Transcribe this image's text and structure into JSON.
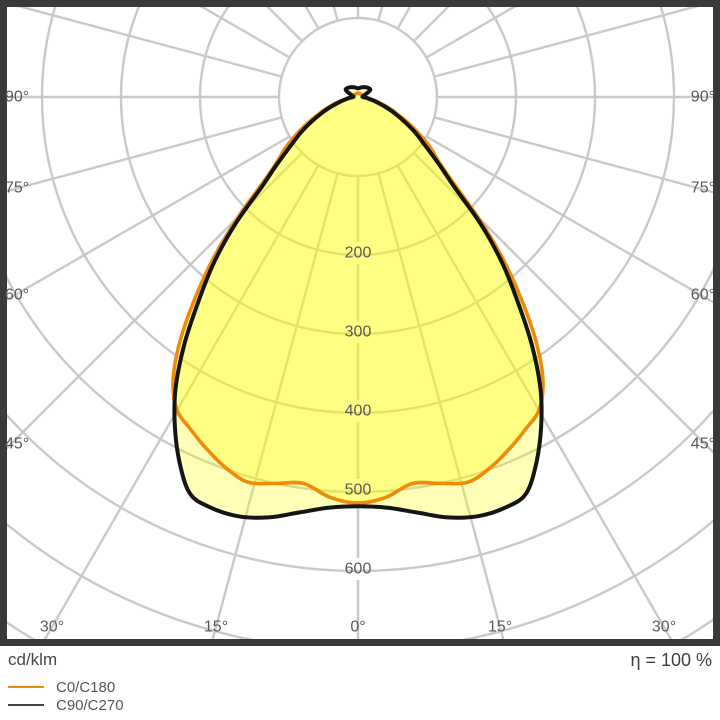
{
  "chart_data": {
    "type": "polar",
    "subtype": "luminous-intensity-distribution",
    "units_label": "cd/klm",
    "efficiency_label": "η = 100 %",
    "grid_color": "#c9c9c9",
    "frame_color": "#3a3a3a",
    "label_color": "#595959",
    "fill_color": "rgba(255,255,0,0.28)",
    "radial_axis": {
      "unit": "cd/klm",
      "tick_labels": [
        200,
        300,
        400,
        500,
        600
      ],
      "grid_circles": [
        100,
        200,
        300,
        400,
        500,
        600,
        700,
        800
      ],
      "max_visible": 700
    },
    "angular_axis": {
      "ray_step_deg": 15,
      "side_tick_labels": [
        "90°",
        "75°",
        "60°",
        "45°"
      ],
      "bottom_tick_labels": [
        "30°",
        "15°",
        "0°",
        "15°",
        "30°"
      ]
    },
    "series": [
      {
        "name": "C0/C180",
        "color": "#ee8c0a",
        "points_deg_cdklm": [
          [
            0,
            514
          ],
          [
            4,
            508
          ],
          [
            8,
            494
          ],
          [
            12,
            500
          ],
          [
            16,
            507
          ],
          [
            20,
            497
          ],
          [
            24,
            482
          ],
          [
            27,
            470
          ],
          [
            30,
            458
          ],
          [
            33,
            430
          ],
          [
            36,
            384
          ],
          [
            39,
            328
          ],
          [
            42,
            272
          ],
          [
            45,
            214
          ],
          [
            48,
            162
          ],
          [
            51,
            133
          ],
          [
            55,
            112
          ],
          [
            59,
            90
          ],
          [
            63,
            70
          ],
          [
            67,
            53
          ],
          [
            71,
            40
          ],
          [
            75,
            28
          ],
          [
            80,
            18
          ],
          [
            85,
            12
          ],
          [
            90,
            8
          ],
          [
            95,
            7
          ],
          [
            110,
            6
          ],
          [
            140,
            5
          ],
          [
            180,
            5
          ]
        ]
      },
      {
        "name": "C90/C270",
        "color": "#151515",
        "points_deg_cdklm": [
          [
            0,
            518
          ],
          [
            4,
            521
          ],
          [
            8,
            531
          ],
          [
            12,
            544
          ],
          [
            16,
            552
          ],
          [
            20,
            552
          ],
          [
            23,
            545
          ],
          [
            26,
            515
          ],
          [
            29,
            478
          ],
          [
            32,
            436
          ],
          [
            35,
            384
          ],
          [
            38,
            328
          ],
          [
            41,
            278
          ],
          [
            44,
            224
          ],
          [
            47,
            166
          ],
          [
            50,
            136
          ],
          [
            54,
            106
          ],
          [
            58,
            86
          ],
          [
            62,
            67
          ],
          [
            66,
            51
          ],
          [
            70,
            37
          ],
          [
            75,
            24
          ],
          [
            80,
            15
          ],
          [
            85,
            10
          ],
          [
            90,
            6
          ],
          [
            95,
            6
          ],
          [
            105,
            8
          ],
          [
            120,
            18
          ],
          [
            140,
            16
          ],
          [
            160,
            13
          ],
          [
            180,
            11
          ]
        ]
      }
    ]
  },
  "legend": {
    "items": [
      {
        "label": "C0/C180",
        "color": "#ee8c0a"
      },
      {
        "label": "C90/C270",
        "color": "#151515"
      }
    ]
  }
}
